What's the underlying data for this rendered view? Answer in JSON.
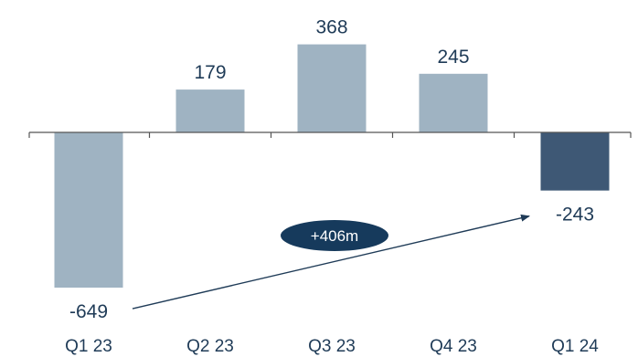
{
  "chart_data": {
    "type": "bar",
    "title": "",
    "xlabel": "",
    "ylabel": "",
    "categories": [
      "Q1 23",
      "Q2 23",
      "Q3 23",
      "Q4 23",
      "Q1 24"
    ],
    "values": [
      -649,
      179,
      368,
      245,
      -243
    ],
    "value_labels": [
      "-649",
      "179",
      "368",
      "245",
      "-243"
    ],
    "ylim": [
      -700,
      400
    ],
    "grid": false,
    "legend": "none",
    "colors": {
      "bar": "#9fb3c2",
      "highlight_bar": "#3e5875",
      "axis": "#555555",
      "text": "#1f3b57",
      "arrow": "#1f3b57",
      "badge_fill": "#163a5c",
      "badge_text": "#ffffff"
    },
    "highlight_index": 4,
    "annotation": {
      "text": "+406m",
      "from_index": 0,
      "to_index": 4
    }
  }
}
